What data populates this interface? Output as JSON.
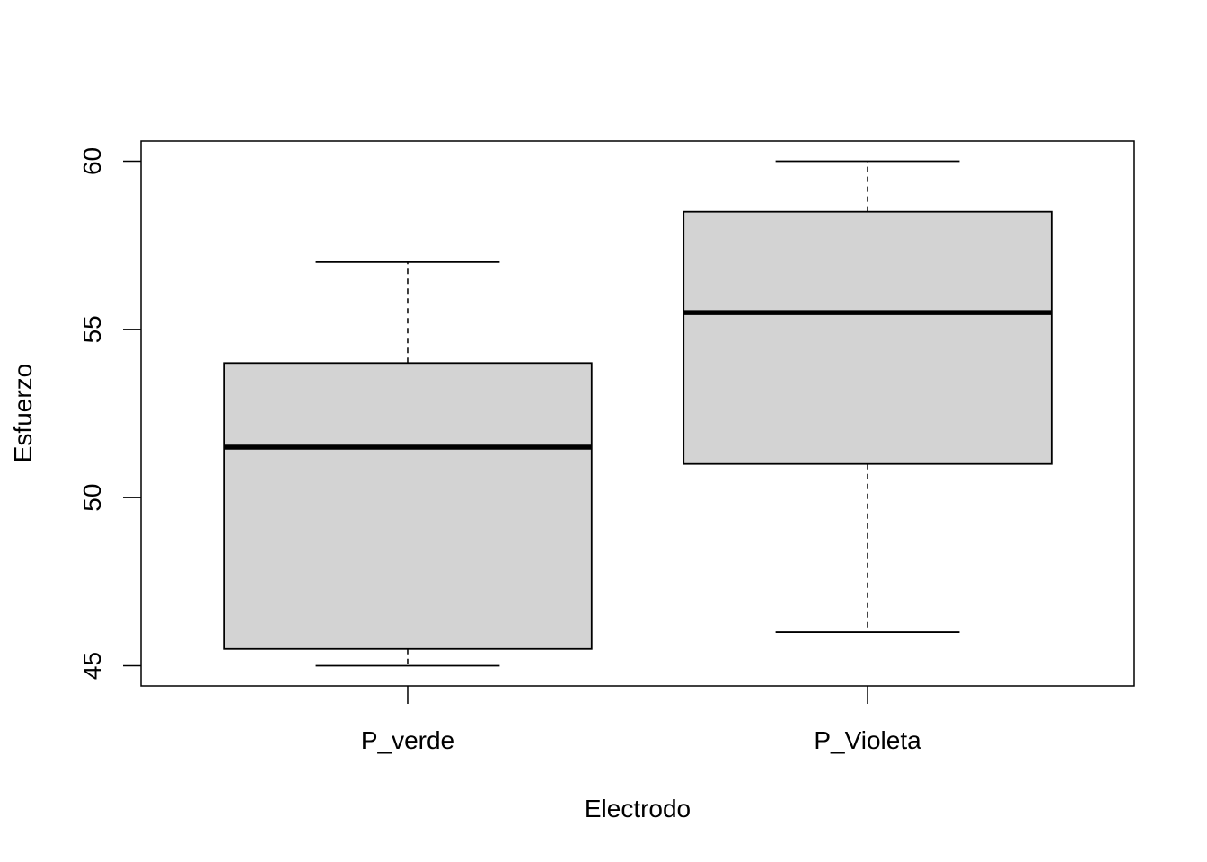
{
  "chart_data": {
    "type": "boxplot",
    "title": "",
    "xlabel": "Electrodo",
    "ylabel": "Esfuerzo",
    "categories": [
      "P_verde",
      "P_Violeta"
    ],
    "boxes": [
      {
        "category": "P_verde",
        "whisker_low": 45,
        "q1": 45.5,
        "median": 51.5,
        "q3": 54,
        "whisker_high": 57
      },
      {
        "category": "P_Violeta",
        "whisker_low": 46,
        "q1": 51,
        "median": 55.5,
        "q3": 58.5,
        "whisker_high": 60
      }
    ],
    "y_ticks": [
      "45",
      "50",
      "55",
      "60"
    ],
    "ylim": [
      44.4,
      60.6
    ],
    "box_fill": "#d3d3d3",
    "line_color": "#000000",
    "grid": false,
    "legend": "none"
  }
}
